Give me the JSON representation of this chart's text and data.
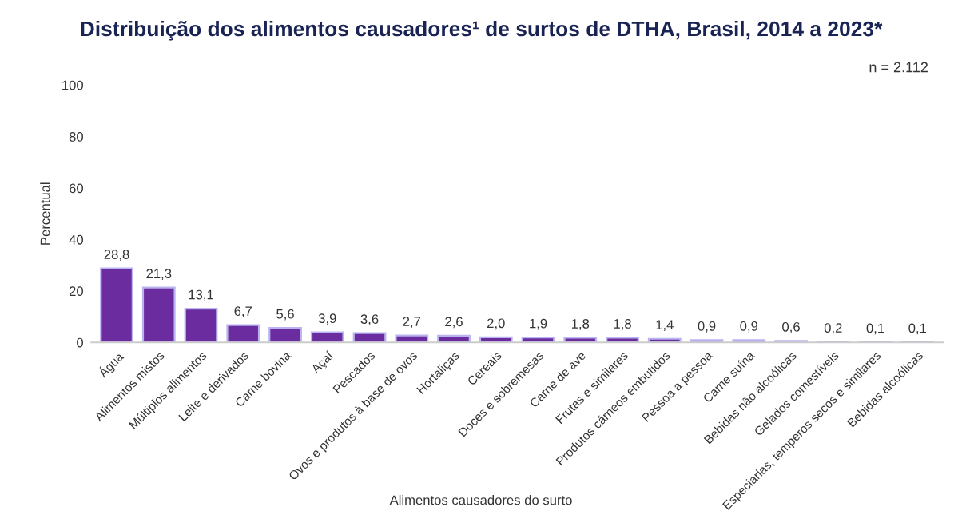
{
  "chart_data": {
    "type": "bar",
    "title": "Distribuição dos alimentos causadores¹ de surtos de DTHA, Brasil, 2014 a 2023*",
    "annotations": [
      "n = 2.112"
    ],
    "xlabel": "Alimentos causadores do surto",
    "ylabel": "Percentual",
    "categories": [
      "Água",
      "Alimentos mistos",
      "Múltiplos alimentos",
      "Leite e derivados",
      "Carne bovina",
      "Açaí",
      "Pescados",
      "Ovos e produtos à base de ovos",
      "Hortaliças",
      "Cereais",
      "Doces e sobremesas",
      "Carne de ave",
      "Frutas e similares",
      "Produtos cárneos embutidos",
      "Pessoa a pessoa",
      "Carne suína",
      "Bebidas não alcoólicas",
      "Gelados comestíveis",
      "Especiarias, temperos secos e similares",
      "Bebidas alcoólicas"
    ],
    "values": [
      28.8,
      21.3,
      13.1,
      6.7,
      5.6,
      3.9,
      3.6,
      2.7,
      2.6,
      2.0,
      1.9,
      1.8,
      1.8,
      1.4,
      0.9,
      0.9,
      0.6,
      0.2,
      0.1,
      0.1
    ],
    "value_labels": [
      "28,8",
      "21,3",
      "13,1",
      "6,7",
      "5,6",
      "3,9",
      "3,6",
      "2,7",
      "2,6",
      "2,0",
      "1,9",
      "1,8",
      "1,8",
      "1,4",
      "0,9",
      "0,9",
      "0,6",
      "0,2",
      "0,1",
      "0,1"
    ],
    "color": "#6a2c9e",
    "ylim": [
      0,
      100
    ],
    "yticks": [
      0,
      20,
      40,
      60,
      80,
      100
    ],
    "grid": false,
    "legend": false
  }
}
